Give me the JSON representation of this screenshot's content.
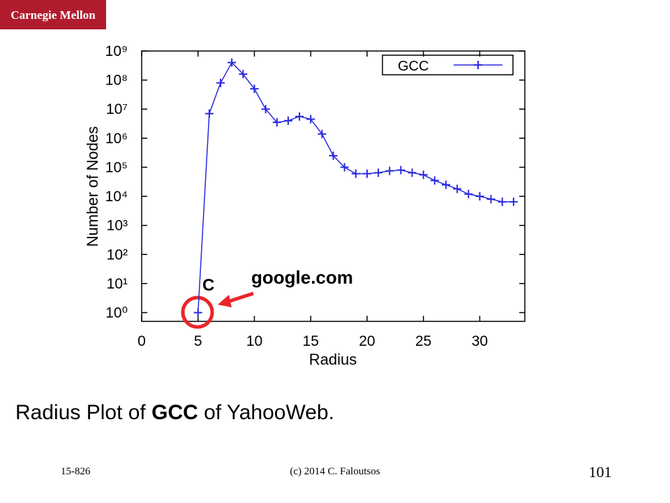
{
  "logo": "Carnegie Mellon",
  "chart_data": {
    "type": "line",
    "xlabel": "Radius",
    "ylabel": "Number of Nodes",
    "x": [
      5,
      6,
      7,
      8,
      9,
      10,
      11,
      12,
      13,
      14,
      15,
      16,
      17,
      18,
      19,
      20,
      21,
      22,
      23,
      24,
      25,
      26,
      27,
      28,
      29,
      30,
      31,
      32,
      33
    ],
    "series": [
      {
        "name": "GCC",
        "color": "#2a2ae0",
        "values": [
          1,
          7000000,
          80000000,
          400000000,
          160000000,
          50000000,
          10000000,
          3500000,
          4000000,
          5600000,
          4500000,
          1400000,
          250000,
          100000,
          60000,
          60000,
          65000,
          75000,
          80000,
          65000,
          55000,
          35000,
          25000,
          18000,
          12000,
          10000,
          8000,
          6500,
          6500
        ]
      }
    ],
    "xlim": [
      0,
      34
    ],
    "xticks": [
      0,
      5,
      10,
      15,
      20,
      25,
      30
    ],
    "ylim": [
      0.5,
      1000000000
    ],
    "log_y": true,
    "yticks": [
      {
        "value": 1,
        "label": "10⁰"
      },
      {
        "value": 10,
        "label": "10¹"
      },
      {
        "value": 100,
        "label": "10²"
      },
      {
        "value": 1000,
        "label": "10³"
      },
      {
        "value": 10000,
        "label": "10⁴"
      },
      {
        "value": 100000,
        "label": "10⁵"
      },
      {
        "value": 1000000,
        "label": "10⁶"
      },
      {
        "value": 10000000,
        "label": "10⁷"
      },
      {
        "value": 100000000,
        "label": "10⁸"
      },
      {
        "value": 1000000000,
        "label": "10⁹"
      }
    ],
    "grid": false,
    "legend": "upper right",
    "annotations": [
      "C",
      "google.com"
    ]
  },
  "caption": [
    "Radius Plot of ",
    "GCC",
    " of YahooWeb."
  ],
  "footer": {
    "course": "15-826",
    "copyright": "(c) 2014  C. Faloutsos",
    "page": "101"
  }
}
